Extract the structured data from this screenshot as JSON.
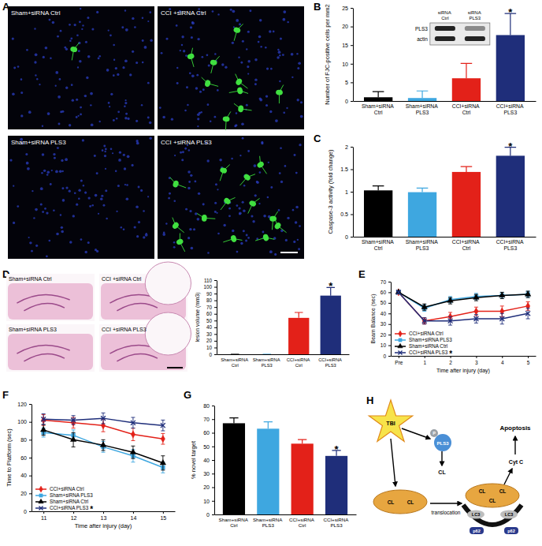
{
  "panel_labels": [
    "A",
    "B",
    "C",
    "D",
    "E",
    "F",
    "G",
    "H"
  ],
  "images": {
    "A": [
      "Sham+siRNA Ctrl",
      "CCI +siRNA Ctrl",
      "Sham+siRNA PLS3",
      "CCI +siRNA PLS3"
    ],
    "D": [
      "Sham+siRNA Ctrl",
      "CCI +siRNA Ctrl",
      "Sham+siRNA PLS3",
      "CCI +siRNA PLS3"
    ]
  },
  "chart_data": [
    {
      "type": "bar",
      "y_label": "Number of FJC-positive cells per mm2",
      "categories": [
        "Sham+siRNA Ctrl",
        "Sham+siRNA PLS3",
        "CCI+siRNA Ctrl",
        "CCI+siRNA PLS3"
      ],
      "values": [
        1,
        0.8,
        6.1,
        17.7
      ],
      "errors": [
        1.5,
        1.9,
        4,
        5.8
      ],
      "colors": [
        "#000000",
        "#3ea7e0",
        "#e32119",
        "#1f2e7a"
      ],
      "ylim": [
        0,
        25
      ],
      "yticks": [
        0,
        5,
        10,
        15,
        20,
        25
      ],
      "annotations": [
        {
          "text": "*",
          "index": 3
        }
      ],
      "inset": {
        "columns": [
          "siRNA Ctrl",
          "siRNA PLS3"
        ],
        "rows": [
          "PLS3",
          "actin"
        ]
      }
    },
    {
      "type": "bar",
      "y_label": "Caspase-3 activity (fold change)",
      "categories": [
        "Sham+siRNA Ctrl",
        "Sham+siRNA PLS3",
        "CCI+siRNA Ctrl",
        "CCI+siRNA PLS3"
      ],
      "values": [
        1.03,
        0.99,
        1.44,
        1.8
      ],
      "errors": [
        0.1,
        0.09,
        0.12,
        0.19
      ],
      "colors": [
        "#000000",
        "#3ea7e0",
        "#e32119",
        "#1f2e7a"
      ],
      "ylim": [
        0,
        2
      ],
      "yticks": [
        0,
        0.5,
        1,
        1.5,
        2
      ],
      "annotations": [
        {
          "text": "*",
          "index": 3
        }
      ]
    },
    {
      "type": "bar",
      "y_label": "lesion volume (mm3)",
      "categories": [
        "Sham+siRNA Ctrl",
        "Sham+siRNA PLS3",
        "CCI+siRNA Ctrl",
        "CCI+siRNA PLS3"
      ],
      "values": [
        0,
        0,
        54,
        87
      ],
      "errors": [
        0,
        0,
        8,
        12
      ],
      "colors": [
        "#000000",
        "#3ea7e0",
        "#e32119",
        "#1f2e7a"
      ],
      "ylim": [
        0,
        110
      ],
      "yticks": [
        0,
        10,
        20,
        30,
        40,
        50,
        60,
        70,
        80,
        90,
        100,
        110
      ],
      "annotations": [
        {
          "text": "*",
          "index": 3
        }
      ]
    },
    {
      "type": "line",
      "y_label": "Beam Balance (sec)",
      "x_label": "Time after injury (day)",
      "categories": [
        "Pre",
        "1",
        "2",
        "3",
        "4",
        "5"
      ],
      "ylim": [
        0,
        70
      ],
      "yticks": [
        0,
        10,
        20,
        30,
        40,
        50,
        60,
        70
      ],
      "legend": "lower left",
      "series": [
        {
          "name": "CCI+siRNA Ctrl",
          "color": "#e32119",
          "marker": "diamond",
          "values": [
            60,
            33,
            37,
            42,
            42,
            47
          ],
          "errors": [
            1,
            3,
            4,
            4,
            5,
            4
          ]
        },
        {
          "name": "Sham+siRNA PLS3",
          "color": "#3ea7e0",
          "marker": "square",
          "values": [
            60,
            45,
            53,
            56,
            57,
            58
          ],
          "errors": [
            1,
            3,
            3,
            3,
            3,
            3
          ]
        },
        {
          "name": "Sham+siRNA Ctrl",
          "color": "#000000",
          "marker": "triangle",
          "values": [
            60,
            46,
            52,
            55,
            57,
            58
          ],
          "errors": [
            1,
            3,
            3,
            3,
            3,
            3
          ]
        },
        {
          "name": "CCI+siRNA PLS3",
          "color": "#1f2e7a",
          "marker": "x",
          "values": [
            60,
            33,
            33,
            35,
            35,
            40
          ],
          "errors": [
            1,
            3,
            4,
            4,
            5,
            5
          ]
        }
      ],
      "annotations": [
        {
          "text": "*",
          "series": 3
        }
      ]
    },
    {
      "type": "line",
      "y_label": "Time to Platform (sec)",
      "x_label": "Time after injury (day)",
      "x": [
        11,
        12,
        13,
        14,
        15
      ],
      "xlim": [
        10.6,
        15.4
      ],
      "xticks": [
        11,
        12,
        13,
        14,
        15
      ],
      "ylim": [
        0,
        120
      ],
      "yticks": [
        0,
        20,
        40,
        60,
        80,
        100,
        120
      ],
      "legend": "lower left",
      "series": [
        {
          "name": "CCI+siRNA Ctrl",
          "color": "#e32119",
          "marker": "diamond",
          "values": [
            102,
            99,
            96,
            86,
            81
          ],
          "errors": [
            6,
            6,
            7,
            7,
            6
          ]
        },
        {
          "name": "Sham+siRNA PLS3",
          "color": "#3ea7e0",
          "marker": "square",
          "values": [
            88,
            85,
            72,
            62,
            49
          ],
          "errors": [
            5,
            6,
            6,
            7,
            6
          ]
        },
        {
          "name": "Sham+siRNA Ctrl",
          "color": "#000000",
          "marker": "triangle",
          "values": [
            91,
            80,
            74,
            66,
            54
          ],
          "errors": [
            6,
            8,
            6,
            7,
            8
          ]
        },
        {
          "name": "CCI+siRNA PLS3",
          "color": "#1f2e7a",
          "marker": "x",
          "values": [
            103,
            102,
            104,
            99,
            96
          ],
          "errors": [
            6,
            5,
            6,
            6,
            6
          ]
        }
      ],
      "annotations": [
        {
          "text": "*",
          "series": 3
        }
      ]
    },
    {
      "type": "bar",
      "y_label": "% novel target",
      "categories": [
        "Sham+siRNA Ctrl",
        "Sham+siRNA PLS3",
        "CCI+siRNA Ctrl",
        "CCI+siRNA PLS3"
      ],
      "values": [
        67,
        63,
        52,
        43
      ],
      "errors": [
        4,
        5,
        3,
        4
      ],
      "colors": [
        "#000000",
        "#3ea7e0",
        "#e32119",
        "#1f2e7a"
      ],
      "ylim": [
        0,
        80
      ],
      "yticks": [
        0,
        10,
        20,
        30,
        40,
        50,
        60,
        70,
        80
      ],
      "annotations": [
        {
          "text": "*",
          "index": 3
        }
      ]
    }
  ],
  "diagram": {
    "trigger": "TBI",
    "phospho": "P",
    "protein": "PLS3",
    "lipid": "CL",
    "process": "translocation",
    "outcome": "Apoptosis",
    "release": "Cyt C",
    "autophagy_marker": "LC3",
    "adaptor": "p62"
  }
}
